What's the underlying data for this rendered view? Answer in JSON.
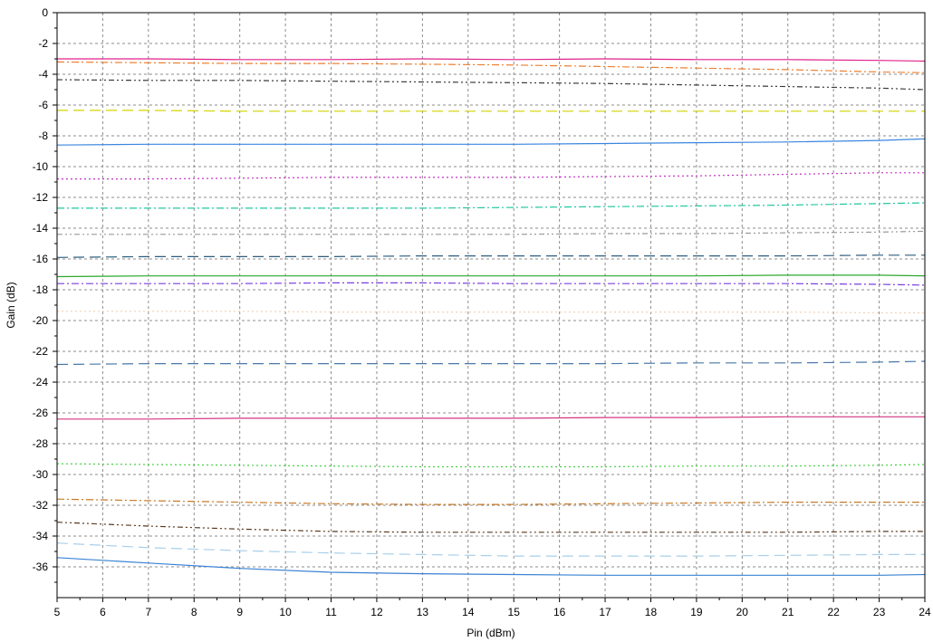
{
  "chart_data": {
    "type": "line",
    "xlabel": "Pin (dBm)",
    "ylabel": "Gain (dB)",
    "xlim": [
      5,
      24
    ],
    "ylim": [
      -38,
      0
    ],
    "grid": true,
    "x_ticks": [
      "5",
      "6",
      "7",
      "8",
      "9",
      "10",
      "11",
      "12",
      "13",
      "14",
      "15",
      "16",
      "17",
      "18",
      "19",
      "20",
      "21",
      "22",
      "23",
      "24"
    ],
    "y_ticks": [
      "0",
      "-2",
      "-4",
      "-6",
      "-8",
      "-10",
      "-12",
      "-14",
      "-16",
      "-18",
      "-20",
      "-22",
      "-24",
      "-26",
      "-28",
      "-30",
      "-32",
      "-34",
      "-36"
    ],
    "x": [
      5,
      7,
      9,
      11,
      13,
      15,
      17,
      19,
      21,
      23,
      24
    ],
    "series": [
      {
        "color": "#e0218a",
        "dash": "solid",
        "values": [
          -3.0,
          -3.0,
          -3.05,
          -3.05,
          -3.0,
          -3.05,
          -3.0,
          -3.05,
          -3.05,
          -3.1,
          -3.15
        ]
      },
      {
        "color": "#ee7f2d",
        "dash": "dashdot",
        "values": [
          -3.2,
          -3.25,
          -3.3,
          -3.3,
          -3.35,
          -3.4,
          -3.5,
          -3.6,
          -3.7,
          -3.85,
          -3.9
        ]
      },
      {
        "color": "#3a3a3a",
        "dash": "dashdot2",
        "values": [
          -4.35,
          -4.4,
          -4.4,
          -4.45,
          -4.5,
          -4.55,
          -4.6,
          -4.7,
          -4.8,
          -4.9,
          -5.0
        ]
      },
      {
        "color": "#d4d400",
        "dash": "longdash",
        "values": [
          -6.35,
          -6.35,
          -6.4,
          -6.4,
          -6.4,
          -6.4,
          -6.4,
          -6.4,
          -6.4,
          -6.4,
          -6.4
        ]
      },
      {
        "color": "#3b86e0",
        "dash": "solid",
        "values": [
          -8.6,
          -8.55,
          -8.55,
          -8.55,
          -8.55,
          -8.55,
          -8.5,
          -8.45,
          -8.4,
          -8.3,
          -8.2
        ]
      },
      {
        "color": "#c533c5",
        "dash": "dot",
        "values": [
          -10.8,
          -10.8,
          -10.75,
          -10.7,
          -10.7,
          -10.7,
          -10.65,
          -10.6,
          -10.5,
          -10.4,
          -10.4
        ]
      },
      {
        "color": "#22c7a0",
        "dash": "dashdot",
        "values": [
          -12.7,
          -12.7,
          -12.7,
          -12.7,
          -12.7,
          -12.65,
          -12.6,
          -12.55,
          -12.5,
          -12.4,
          -12.35
        ]
      },
      {
        "color": "#9a9a9a",
        "dash": "dashdot2",
        "values": [
          -14.4,
          -14.4,
          -14.4,
          -14.4,
          -14.4,
          -14.4,
          -14.35,
          -14.35,
          -14.3,
          -14.25,
          -14.2
        ]
      },
      {
        "color": "#2e5f7f",
        "dash": "longdash",
        "values": [
          -15.9,
          -15.85,
          -15.85,
          -15.85,
          -15.8,
          -15.8,
          -15.8,
          -15.8,
          -15.8,
          -15.75,
          -15.75
        ]
      },
      {
        "color": "#2ca82c",
        "dash": "solid",
        "values": [
          -17.15,
          -17.1,
          -17.1,
          -17.1,
          -17.1,
          -17.1,
          -17.1,
          -17.1,
          -17.05,
          -17.05,
          -17.1
        ]
      },
      {
        "color": "#7b3fe0",
        "dash": "dashdot",
        "values": [
          -17.6,
          -17.6,
          -17.6,
          -17.55,
          -17.55,
          -17.6,
          -17.6,
          -17.6,
          -17.6,
          -17.65,
          -17.7
        ]
      },
      {
        "color": "#f2d2b4",
        "dash": "dot",
        "values": [
          -19.4,
          -19.4,
          -19.4,
          -19.45,
          -19.45,
          -19.45,
          -19.45,
          -19.45,
          -19.45,
          -19.5,
          -19.5
        ]
      },
      {
        "color": "#4a78a8",
        "dash": "longdash",
        "values": [
          -22.85,
          -22.8,
          -22.8,
          -22.8,
          -22.8,
          -22.8,
          -22.8,
          -22.75,
          -22.75,
          -22.7,
          -22.65
        ]
      },
      {
        "color": "#d43680",
        "dash": "solid",
        "values": [
          -26.4,
          -26.4,
          -26.35,
          -26.35,
          -26.35,
          -26.35,
          -26.3,
          -26.3,
          -26.25,
          -26.25,
          -26.25
        ]
      },
      {
        "color": "#44d044",
        "dash": "dot",
        "values": [
          -29.3,
          -29.35,
          -29.4,
          -29.45,
          -29.5,
          -29.5,
          -29.5,
          -29.45,
          -29.45,
          -29.4,
          -29.35
        ]
      },
      {
        "color": "#c87a28",
        "dash": "dashdot",
        "values": [
          -31.6,
          -31.7,
          -31.8,
          -31.9,
          -31.95,
          -31.95,
          -31.9,
          -31.85,
          -31.8,
          -31.8,
          -31.8
        ]
      },
      {
        "color": "#5a3a20",
        "dash": "dashdot2",
        "values": [
          -33.1,
          -33.35,
          -33.55,
          -33.7,
          -33.75,
          -33.75,
          -33.75,
          -33.75,
          -33.75,
          -33.7,
          -33.7
        ]
      },
      {
        "color": "#a8cfea",
        "dash": "longdash",
        "values": [
          -34.45,
          -34.75,
          -34.95,
          -35.1,
          -35.2,
          -35.3,
          -35.3,
          -35.3,
          -35.25,
          -35.2,
          -35.2
        ]
      },
      {
        "color": "#3a82d4",
        "dash": "solid",
        "values": [
          -35.4,
          -35.75,
          -36.1,
          -36.35,
          -36.45,
          -36.5,
          -36.55,
          -36.55,
          -36.55,
          -36.55,
          -36.5
        ]
      }
    ]
  }
}
